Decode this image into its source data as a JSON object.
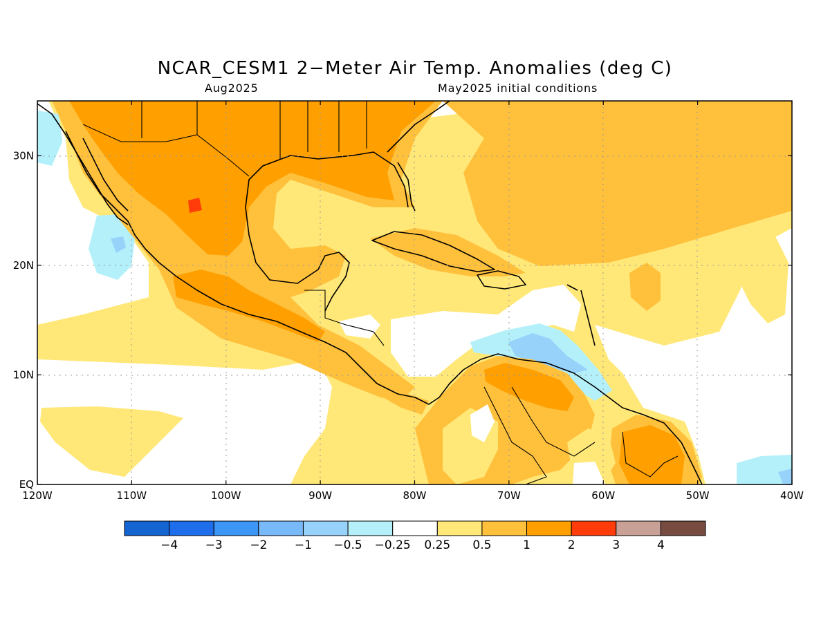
{
  "title": "NCAR_CESM1 2−Meter Air Temp. Anomalies (deg C)",
  "subtitle_left": "Aug2025",
  "subtitle_right": "May2025 initial conditions",
  "lon_labels": [
    "120W",
    "110W",
    "100W",
    "90W",
    "80W",
    "70W",
    "60W",
    "50W",
    "40W"
  ],
  "lat_labels": [
    "EQ",
    "10N",
    "20N",
    "30N"
  ],
  "colorbar": {
    "colors": [
      "#1464d2",
      "#1e6eeb",
      "#3c96f5",
      "#78b9fa",
      "#96d2fa",
      "#b4f0fa",
      "#ffffff",
      "#ffe878",
      "#ffc03c",
      "#ffa000",
      "#ff3c0a",
      "#c8a096",
      "#784b40"
    ],
    "labels": [
      "−4",
      "−3",
      "−2",
      "−1",
      "−0.5",
      "−0.25",
      "0.25",
      "0.5",
      "1",
      "2",
      "3",
      "4"
    ]
  }
}
